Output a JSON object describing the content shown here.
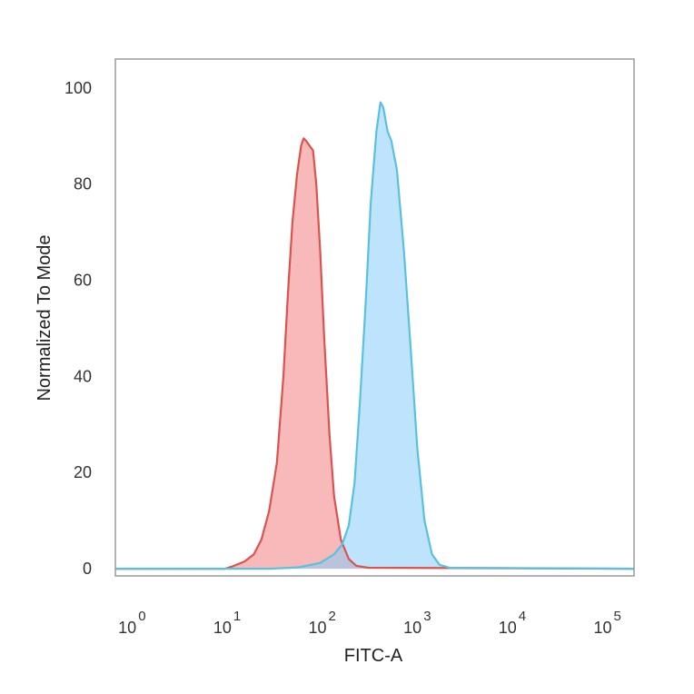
{
  "chart_data": {
    "type": "area",
    "title": "",
    "xlabel": "FITC-A",
    "ylabel": "Normalized To Mode",
    "x_scale": "log",
    "xlim": [
      0.7,
      200000
    ],
    "ylim": [
      -1.5,
      106
    ],
    "grid": false,
    "x_ticks": [
      {
        "value": 1,
        "base": "10",
        "exp": "0"
      },
      {
        "value": 10,
        "base": "10",
        "exp": "1"
      },
      {
        "value": 100,
        "base": "10",
        "exp": "2"
      },
      {
        "value": 1000,
        "base": "10",
        "exp": "3"
      },
      {
        "value": 10000,
        "base": "10",
        "exp": "4"
      },
      {
        "value": 100000,
        "base": "10",
        "exp": "5"
      }
    ],
    "y_ticks": [
      {
        "value": 0,
        "label": "0"
      },
      {
        "value": 20,
        "label": "20"
      },
      {
        "value": 40,
        "label": "40"
      },
      {
        "value": 60,
        "label": "60"
      },
      {
        "value": 80,
        "label": "80"
      },
      {
        "value": 100,
        "label": "100"
      }
    ],
    "series": [
      {
        "color": "#d9534f",
        "fill": "#f08080",
        "points": [
          [
            0.7,
            0
          ],
          [
            10,
            0
          ],
          [
            12,
            0.5
          ],
          [
            16,
            1.5
          ],
          [
            20,
            3
          ],
          [
            24,
            6
          ],
          [
            29,
            12
          ],
          [
            35,
            22
          ],
          [
            41,
            40
          ],
          [
            46,
            58
          ],
          [
            51,
            72
          ],
          [
            57,
            82
          ],
          [
            63,
            88
          ],
          [
            67,
            89.5
          ],
          [
            71,
            89
          ],
          [
            77,
            88
          ],
          [
            84,
            87
          ],
          [
            91,
            80
          ],
          [
            100,
            66
          ],
          [
            110,
            48
          ],
          [
            125,
            28
          ],
          [
            140,
            15
          ],
          [
            165,
            6
          ],
          [
            200,
            2
          ],
          [
            240,
            0.6
          ],
          [
            320,
            0.2
          ],
          [
            200000,
            0
          ]
        ]
      },
      {
        "color": "#5bc0de",
        "fill": "#87cefa",
        "points": [
          [
            0.7,
            0
          ],
          [
            30,
            0
          ],
          [
            60,
            0.3
          ],
          [
            100,
            1.2
          ],
          [
            140,
            3
          ],
          [
            170,
            5
          ],
          [
            200,
            9
          ],
          [
            230,
            18
          ],
          [
            260,
            34
          ],
          [
            300,
            55
          ],
          [
            340,
            76
          ],
          [
            390,
            91
          ],
          [
            430,
            97
          ],
          [
            460,
            96
          ],
          [
            510,
            91
          ],
          [
            560,
            89
          ],
          [
            640,
            83
          ],
          [
            760,
            66
          ],
          [
            900,
            45
          ],
          [
            1050,
            25
          ],
          [
            1250,
            10
          ],
          [
            1500,
            3
          ],
          [
            1800,
            0.8
          ],
          [
            2300,
            0.2
          ],
          [
            200000,
            0
          ]
        ]
      }
    ]
  }
}
